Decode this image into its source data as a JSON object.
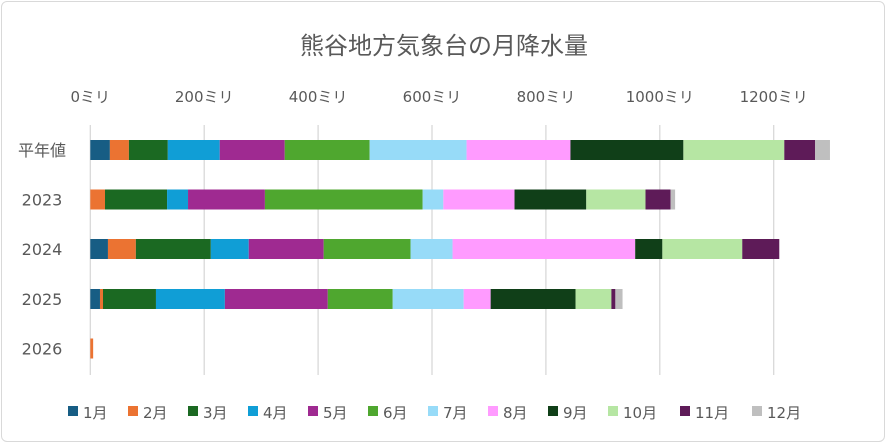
{
  "chart_data": {
    "type": "bar",
    "orientation": "horizontal",
    "stacked": true,
    "title": "熊谷地方気象台の月降水量",
    "xlabel": "",
    "ylabel": "",
    "xlim": [
      0,
      1300
    ],
    "x_ticks": [
      0,
      200,
      400,
      600,
      800,
      1000,
      1200
    ],
    "x_tick_labels": [
      "0ミリ",
      "200ミリ",
      "400ミリ",
      "600ミリ",
      "800ミリ",
      "1000ミリ",
      "1200ミリ"
    ],
    "grid": true,
    "legend_position": "bottom",
    "categories": [
      "平年値",
      "2023",
      "2024",
      "2025",
      "2026"
    ],
    "series": [
      {
        "name": "1月",
        "color": "#175D84",
        "values": [
          34.4,
          0,
          31,
          17,
          0
        ]
      },
      {
        "name": "2月",
        "color": "#EB7332",
        "values": [
          33.4,
          25.8,
          49,
          5.3,
          5
        ]
      },
      {
        "name": "3月",
        "color": "#1B6922",
        "values": [
          68.3,
          109,
          131.6,
          93,
          0
        ]
      },
      {
        "name": "4月",
        "color": "#109ED6",
        "values": [
          91.2,
          36.8,
          66.6,
          121,
          0
        ]
      },
      {
        "name": "5月",
        "color": "#9F2A91",
        "values": [
          114.1,
          135,
          131.6,
          180.7,
          0
        ]
      },
      {
        "name": "6月",
        "color": "#4FA72F",
        "values": [
          149.1,
          277,
          152.6,
          114,
          0
        ]
      },
      {
        "name": "7月",
        "color": "#97DBF8",
        "values": [
          170.2,
          36.3,
          73.7,
          124.6,
          0
        ]
      },
      {
        "name": "8月",
        "color": "#FF9BFF",
        "values": [
          182.4,
          125,
          320.7,
          47.4,
          0
        ]
      },
      {
        "name": "9月",
        "color": "#103F18",
        "values": [
          198.3,
          126,
          47.7,
          149,
          0
        ]
      },
      {
        "name": "10月",
        "color": "#B6E6A3",
        "values": [
          177.2,
          104,
          140.3,
          63,
          0
        ]
      },
      {
        "name": "11月",
        "color": "#5E1B58",
        "values": [
          54.2,
          44,
          65,
          7,
          0
        ]
      },
      {
        "name": "12月",
        "color": "#BFBFBF",
        "values": [
          26,
          8,
          0,
          12.6,
          0
        ]
      }
    ]
  }
}
